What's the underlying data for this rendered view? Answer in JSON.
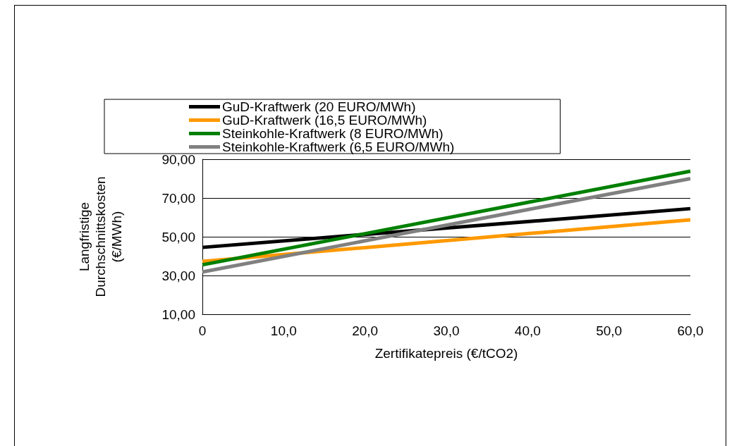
{
  "chart_data": {
    "type": "line",
    "xlabel": "Zertifikatepreis (€/tCO2)",
    "ylabel": "Langfristige Durchschnittskosten (€/MWh)",
    "x": [
      0,
      20,
      40,
      60
    ],
    "series": [
      {
        "name": "GuD-Kraftwerk (20 EURO/MWh)",
        "color": "#000000",
        "values": [
          44.5,
          51.2,
          57.8,
          64.5
        ]
      },
      {
        "name": "GuD-Kraftwerk (16,5 EURO/MWh)",
        "color": "#ff9900",
        "values": [
          37.3,
          44.4,
          51.6,
          58.7
        ]
      },
      {
        "name": "Steinkohle-Kraftwerk (8 EURO/MWh)",
        "color": "#008000",
        "values": [
          35.5,
          51.6,
          67.7,
          83.8
        ]
      },
      {
        "name": "Steinkohle-Kraftwerk (6,5 EURO/MWh)",
        "color": "#808080",
        "values": [
          31.8,
          47.9,
          64.0,
          80.0
        ]
      }
    ],
    "xlim": [
      0,
      60
    ],
    "xticks": [
      {
        "value": 0,
        "label": "0"
      },
      {
        "value": 10,
        "label": "10,0"
      },
      {
        "value": 20,
        "label": "20,0"
      },
      {
        "value": 30,
        "label": "30,0"
      },
      {
        "value": 40,
        "label": "40,0"
      },
      {
        "value": 50,
        "label": "50,0"
      },
      {
        "value": 60,
        "label": "60,0"
      }
    ],
    "ylim": [
      10,
      90
    ],
    "yticks": [
      {
        "value": 10,
        "label": "10,00"
      },
      {
        "value": 30,
        "label": "30,00"
      },
      {
        "value": 50,
        "label": "50,00"
      },
      {
        "value": 70,
        "label": "70,00"
      },
      {
        "value": 90,
        "label": "90,00"
      }
    ],
    "grid": "y",
    "legend": "top",
    "marker": "none",
    "line_style": "solid"
  }
}
